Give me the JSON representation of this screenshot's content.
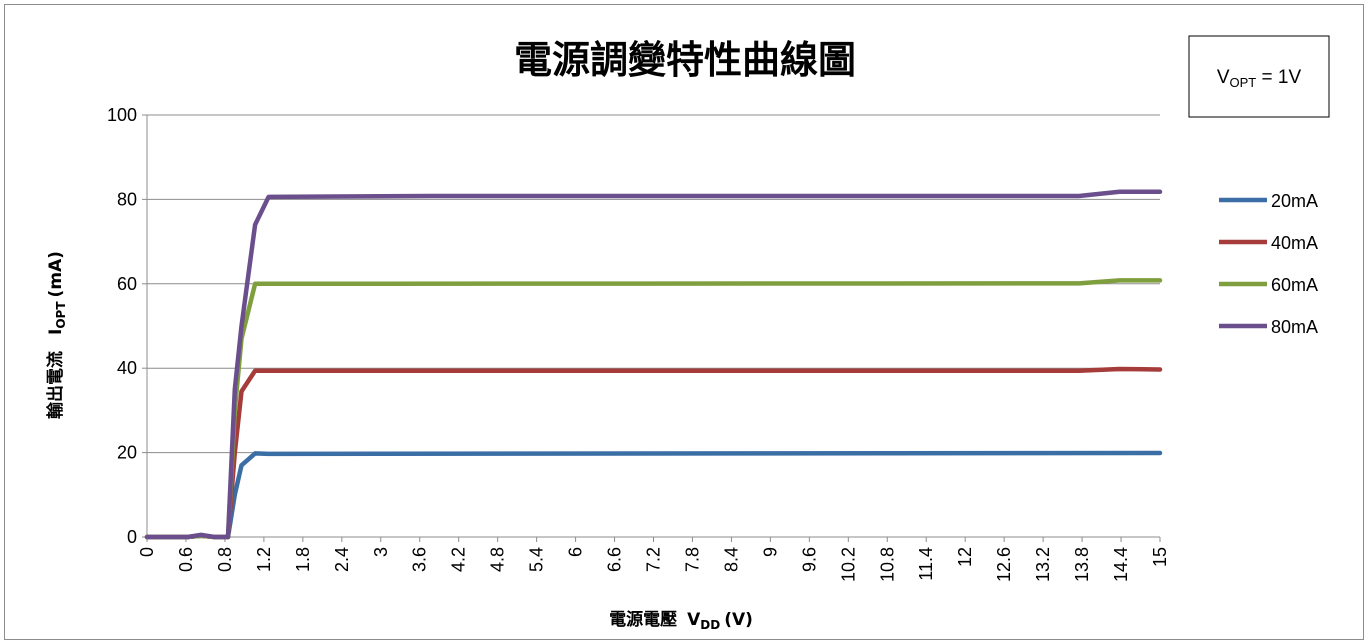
{
  "chart_data": {
    "type": "line",
    "title": "電源調變特性曲線圖",
    "xlabel": "電源電壓",
    "xlabel_var": "V",
    "xlabel_sub": "DD",
    "xlabel_unit": "(V)",
    "ylabel": "輸出電流",
    "ylabel_var": "I",
    "ylabel_sub": "OPT",
    "ylabel_unit": "(mA)",
    "note": {
      "var": "V",
      "sub": "OPT",
      "rest": " = 1V"
    },
    "ylim": [
      0,
      100
    ],
    "yticks": [
      "0",
      "20",
      "40",
      "60",
      "80",
      "100"
    ],
    "xlim": [
      0,
      15
    ],
    "xticks": [
      "0",
      "0.6",
      "0.8",
      "1.2",
      "1.8",
      "2.4",
      "3",
      "3.6",
      "4.2",
      "4.8",
      "5.4",
      "6",
      "6.6",
      "7.2",
      "7.8",
      "8.4",
      "9",
      "9.6",
      "10.2",
      "10.8",
      "11.4",
      "12",
      "12.6",
      "13.2",
      "13.8",
      "14.4",
      "15"
    ],
    "grid": "horizontal",
    "legend_position": "right",
    "series": [
      {
        "name": "20mA",
        "color": "#3a6ea5",
        "x": [
          0,
          0.6,
          0.8,
          1.0,
          1.2,
          1.3,
          1.4,
          1.6,
          1.8,
          15
        ],
        "y": [
          0,
          0,
          0.3,
          0,
          0,
          10,
          17,
          19.8,
          19.7,
          19.9
        ]
      },
      {
        "name": "40mA",
        "color": "#a53c3a",
        "x": [
          0,
          0.6,
          0.8,
          1.0,
          1.2,
          1.3,
          1.4,
          1.6,
          1.8,
          13.8,
          14.4,
          15
        ],
        "y": [
          0,
          0,
          0.3,
          0,
          0,
          20,
          34.5,
          39.4,
          39.4,
          39.4,
          39.8,
          39.7
        ]
      },
      {
        "name": "60mA",
        "color": "#7f9f3f",
        "x": [
          0,
          0.6,
          0.8,
          1.0,
          1.2,
          1.3,
          1.4,
          1.6,
          1.8,
          13.8,
          14.4,
          15
        ],
        "y": [
          0,
          0,
          0.3,
          0,
          0,
          30,
          47,
          60,
          60,
          60.1,
          60.8,
          60.8
        ]
      },
      {
        "name": "80mA",
        "color": "#6a4f8c",
        "x": [
          0,
          0.6,
          0.8,
          1.0,
          1.2,
          1.3,
          1.4,
          1.6,
          1.8,
          4.2,
          13.8,
          14.4,
          15
        ],
        "y": [
          0,
          0,
          0.5,
          0,
          0,
          35,
          50,
          74,
          80.6,
          80.8,
          80.8,
          81.8,
          81.8
        ]
      }
    ]
  }
}
